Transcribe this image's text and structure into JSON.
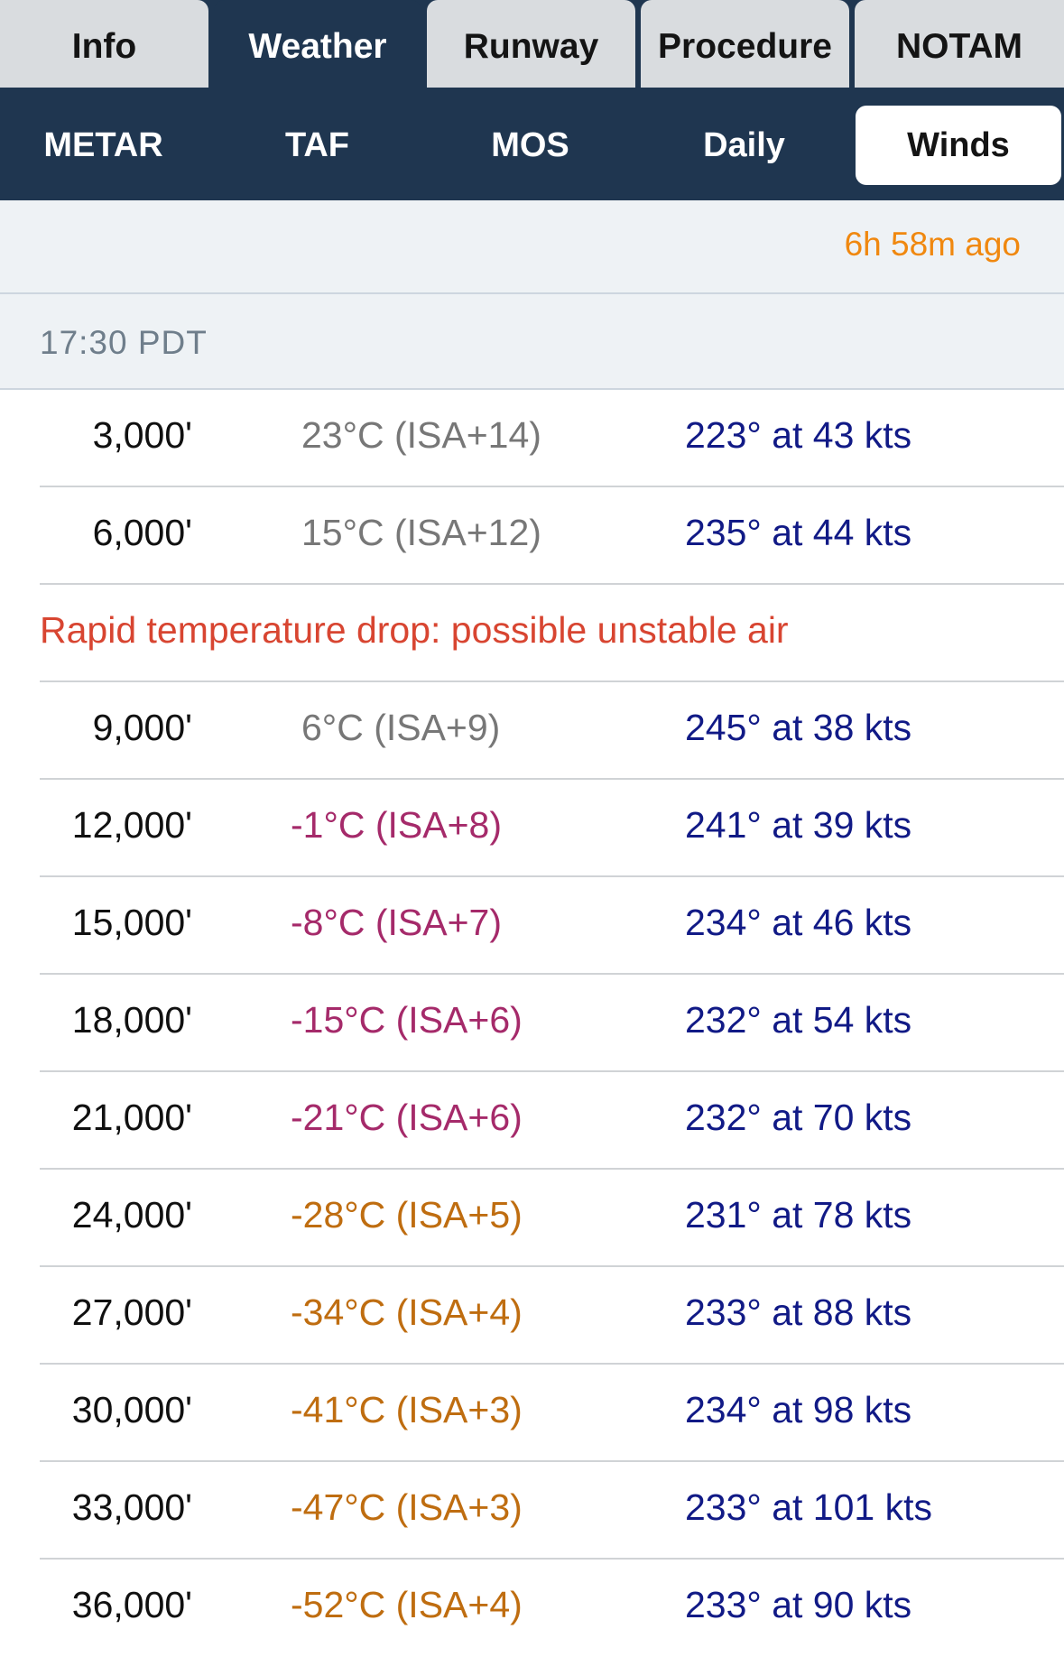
{
  "top_tabs": [
    {
      "label": "Info"
    },
    {
      "label": "Weather"
    },
    {
      "label": "Runway"
    },
    {
      "label": "Procedure"
    },
    {
      "label": "NOTAM"
    }
  ],
  "active_top_tab": "Weather",
  "sub_tabs": [
    {
      "label": "METAR"
    },
    {
      "label": "TAF"
    },
    {
      "label": "MOS"
    },
    {
      "label": "Daily"
    },
    {
      "label": "Winds"
    }
  ],
  "active_sub_tab": "Winds",
  "updated": "6h 58m ago",
  "section_time": "17:30 PDT",
  "warning": "Rapid temperature drop: possible unstable air",
  "rows": [
    {
      "altitude": "3,000'",
      "temp": "23°C (ISA+14)",
      "wind": "223° at 43 kts"
    },
    {
      "altitude": "6,000'",
      "temp": "15°C (ISA+12)",
      "wind": "235° at 44 kts"
    },
    {
      "altitude": "9,000'",
      "temp": "6°C (ISA+9)",
      "wind": "245° at 38 kts"
    },
    {
      "altitude": "12,000'",
      "temp": "-1°C (ISA+8)",
      "wind": "241° at 39 kts"
    },
    {
      "altitude": "15,000'",
      "temp": "-8°C (ISA+7)",
      "wind": "234° at 46 kts"
    },
    {
      "altitude": "18,000'",
      "temp": "-15°C (ISA+6)",
      "wind": "232° at 54 kts"
    },
    {
      "altitude": "21,000'",
      "temp": "-21°C (ISA+6)",
      "wind": "232° at 70 kts"
    },
    {
      "altitude": "24,000'",
      "temp": "-28°C (ISA+5)",
      "wind": "231° at 78 kts"
    },
    {
      "altitude": "27,000'",
      "temp": "-34°C (ISA+4)",
      "wind": "233° at 88 kts"
    },
    {
      "altitude": "30,000'",
      "temp": "-41°C (ISA+3)",
      "wind": "234° at 98 kts"
    },
    {
      "altitude": "33,000'",
      "temp": "-47°C (ISA+3)",
      "wind": "233° at 101 kts"
    },
    {
      "altitude": "36,000'",
      "temp": "-52°C (ISA+4)",
      "wind": "233° at 90 kts"
    }
  ],
  "colors": {
    "nav_dark": "#1f3650",
    "tab_inactive": "#d9dcdf",
    "updated_orange": "#f0880f",
    "warning_red": "#d84531",
    "temp_gray": "#777777",
    "temp_magenta": "#a52a6a",
    "temp_orange": "#bf6d10",
    "wind_blue": "#111a86"
  }
}
